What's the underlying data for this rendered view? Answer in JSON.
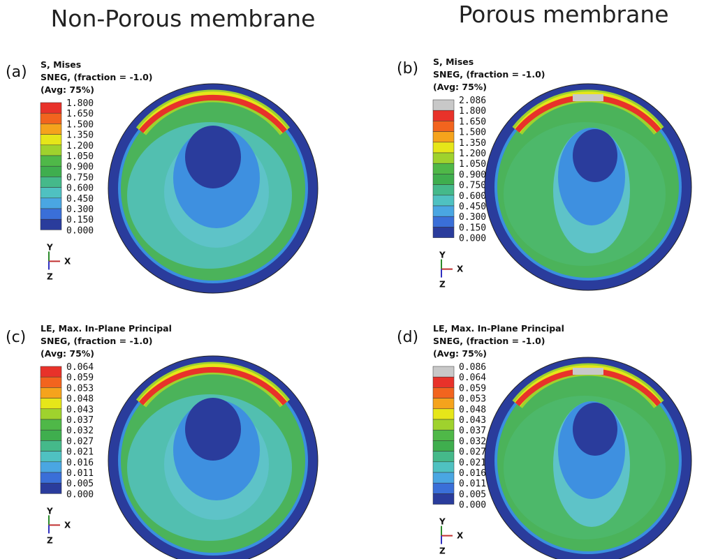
{
  "headings": [
    "Non-Porous membrane",
    "Porous membrane"
  ],
  "panels": [
    {
      "label": "(a)",
      "header": [
        "S, Mises",
        "SNEG, (fraction = -1.0)",
        "(Avg: 75%)"
      ],
      "legend": [
        "1.800",
        "1.650",
        "1.500",
        "1.350",
        "1.200",
        "1.050",
        "0.900",
        "0.750",
        "0.600",
        "0.450",
        "0.300",
        "0.150",
        "0.000"
      ],
      "triad": {
        "y": "Y",
        "x": "X",
        "z": "Z"
      }
    },
    {
      "label": "(b)",
      "header": [
        "S, Mises",
        "SNEG, (fraction = -1.0)",
        "(Avg: 75%)"
      ],
      "legend": [
        "2.086",
        "1.800",
        "1.650",
        "1.500",
        "1.350",
        "1.200",
        "1.050",
        "0.900",
        "0.750",
        "0.600",
        "0.450",
        "0.300",
        "0.150",
        "0.000"
      ],
      "triad": {
        "y": "Y",
        "x": "X",
        "z": "Z"
      }
    },
    {
      "label": "(c)",
      "header": [
        "LE, Max. In-Plane Principal",
        "SNEG, (fraction = -1.0)",
        "(Avg: 75%)"
      ],
      "legend": [
        "0.064",
        "0.059",
        "0.053",
        "0.048",
        "0.043",
        "0.037",
        "0.032",
        "0.027",
        "0.021",
        "0.016",
        "0.011",
        "0.005",
        "0.000"
      ],
      "triad": {
        "y": "Y",
        "x": "X",
        "z": "Z"
      }
    },
    {
      "label": "(d)",
      "header": [
        "LE, Max. In-Plane Principal",
        "SNEG, (fraction = -1.0)",
        "(Avg: 75%)"
      ],
      "legend": [
        "0.086",
        "0.064",
        "0.059",
        "0.053",
        "0.048",
        "0.043",
        "0.037",
        "0.032",
        "0.027",
        "0.021",
        "0.016",
        "0.011",
        "0.005",
        "0.000"
      ],
      "triad": {
        "y": "Y",
        "x": "X",
        "z": "Z"
      }
    }
  ]
}
